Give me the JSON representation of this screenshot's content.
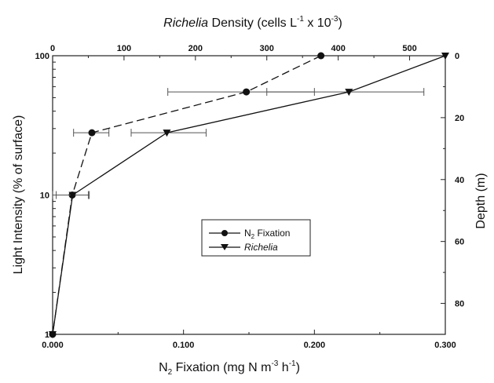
{
  "chart_data": {
    "type": "line",
    "top_axis_title": "Richelia Density (cells L-1 x 10-3)",
    "top_axis_title_parts": {
      "italic": "Richelia",
      "prefix": " Density (cells L",
      "exp1": "-1",
      "mid": " x 10",
      "exp2": "-3",
      "suffix": ")"
    },
    "bottom_axis_title": "N2 Fixation (mg N m-3 h-1)",
    "bottom_axis_title_parts": {
      "prefix": "N",
      "sub": "2",
      "mid": " Fixation (mg N m",
      "exp1": "-3",
      "mid2": " h",
      "exp2": "-1",
      "suffix": ")"
    },
    "left_axis_title": "Light Intensity (% of surface)",
    "right_axis_title": "Depth (m)",
    "x_bottom": {
      "min": 0,
      "max": 0.3,
      "ticks": [
        0,
        0.1,
        0.2,
        0.3
      ],
      "tick_labels": [
        "0.000",
        "0.100",
        "0.200",
        "0.300"
      ]
    },
    "x_top": {
      "min": 0,
      "max": 550,
      "ticks": [
        0,
        100,
        200,
        300,
        400,
        500
      ],
      "tick_labels": [
        "0",
        "100",
        "200",
        "300",
        "400",
        "500"
      ]
    },
    "y_left": {
      "scale": "log",
      "min": 1,
      "max": 100,
      "ticks": [
        1,
        10,
        100
      ],
      "tick_labels": [
        "1",
        "10",
        "100"
      ]
    },
    "y_right": {
      "min": 0,
      "max": 90,
      "reversed": true,
      "ticks": [
        0,
        20,
        40,
        60,
        80
      ],
      "tick_labels": [
        "0",
        "20",
        "40",
        "60",
        "80"
      ]
    },
    "series": [
      {
        "name": "N2 Fixation",
        "legend_label_parts": {
          "prefix": "N",
          "sub": "2",
          "suffix": " Fixation"
        },
        "axis": "bottom",
        "marker": "circle",
        "line": "dashed",
        "points": [
          {
            "x": 0.205,
            "light": 100,
            "xerr": [
              0.205,
              0.205
            ]
          },
          {
            "x": 0.148,
            "light": 55,
            "xerr": [
              0.088,
              0.2
            ]
          },
          {
            "x": 0.03,
            "light": 28,
            "xerr": [
              0.016,
              0.043
            ]
          },
          {
            "x": 0.015,
            "light": 10,
            "xerr": [
              0.0,
              0.028
            ]
          },
          {
            "x": 0.0,
            "light": 1,
            "xerr": [
              0.0,
              0.0
            ]
          }
        ]
      },
      {
        "name": "Richelia",
        "legend_label_parts": {
          "italic": "Richelia"
        },
        "axis": "top",
        "marker": "triangle-down",
        "line": "solid",
        "points": [
          {
            "x": 550,
            "light": 100,
            "xerr": [
              550,
              550
            ]
          },
          {
            "x": 415,
            "light": 55,
            "xerr": [
              300,
              520
            ]
          },
          {
            "x": 160,
            "light": 28,
            "xerr": [
              110,
              215
            ]
          },
          {
            "x": 28,
            "light": 10,
            "xerr": [
              5,
              50
            ]
          },
          {
            "x": 0,
            "light": 1,
            "xerr": [
              0,
              0
            ]
          }
        ]
      }
    ],
    "legend": {
      "placement": "center-right"
    },
    "grid": false
  }
}
